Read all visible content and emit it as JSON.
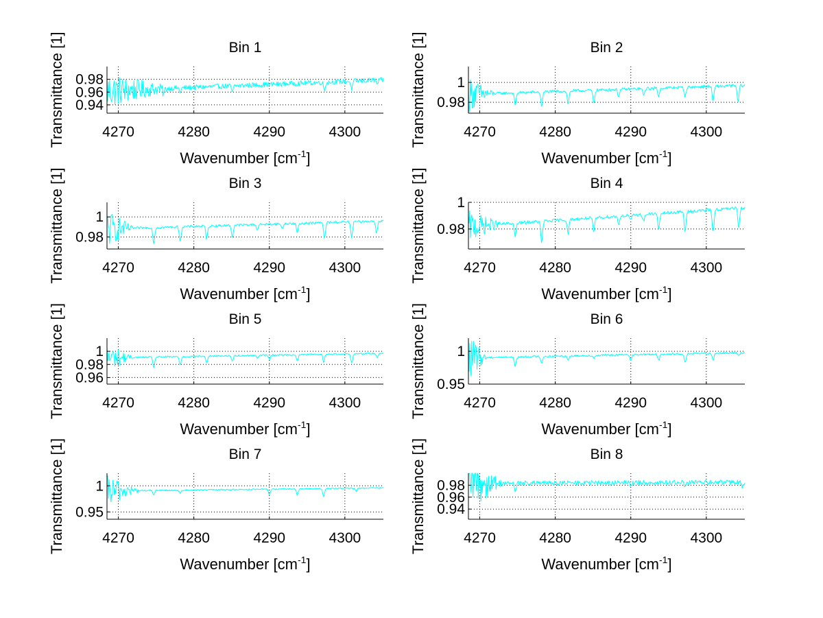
{
  "figure": {
    "background": "#ffffff",
    "line_color": "#00ffff"
  },
  "chart_data": [
    {
      "type": "line",
      "title": "Bin 1",
      "xlabel": "Wavenumber [cm",
      "xlabel_sup": "-1",
      "xlabel_close": "]",
      "ylabel": "Transmittance [1]",
      "xlim": [
        4268.5,
        4305.1
      ],
      "ylim": [
        0.927,
        1.0
      ],
      "xticks": [
        4270,
        4280,
        4290,
        4300
      ],
      "xtick_labels": [
        "4270",
        "4280",
        "4290",
        "4300"
      ],
      "yticks": [
        0.94,
        0.96,
        0.98
      ],
      "ytick_labels": [
        "0.94",
        "0.96",
        "0.98"
      ],
      "grid": true,
      "series": [
        {
          "name": "Bin 1",
          "baseline_start": 0.962,
          "baseline_end": 0.979,
          "noise_early": 0.028,
          "noise_late": 0.004,
          "noise_decay_until": 4277,
          "dips": [
            [
              4276.0,
              0.008
            ],
            [
              4278.2,
              0.006
            ],
            [
              4285.1,
              0.01
            ],
            [
              4297.3,
              0.012
            ],
            [
              4300.9,
              0.012
            ],
            [
              4304.3,
              0.006
            ]
          ]
        }
      ]
    },
    {
      "type": "line",
      "title": "Bin 2",
      "xlabel": "Wavenumber [cm",
      "xlabel_sup": "-1",
      "xlabel_close": "]",
      "ylabel": "Transmittance [1]",
      "xlim": [
        4268.5,
        4305.1
      ],
      "ylim": [
        0.969,
        1.016
      ],
      "xticks": [
        4270,
        4280,
        4290,
        4300
      ],
      "xtick_labels": [
        "4270",
        "4280",
        "4290",
        "4300"
      ],
      "yticks": [
        0.98,
        1.0
      ],
      "ytick_labels": [
        "0.98",
        "1"
      ],
      "grid": true,
      "series": [
        {
          "name": "Bin 2",
          "baseline_start": 0.988,
          "baseline_end": 0.997,
          "noise_early": 0.018,
          "noise_late": 0.0015,
          "noise_decay_until": 4272,
          "dips": [
            [
              4274.7,
              0.012
            ],
            [
              4278.2,
              0.014
            ],
            [
              4281.7,
              0.013
            ],
            [
              4285.1,
              0.013
            ],
            [
              4288.4,
              0.007
            ],
            [
              4291.7,
              0.007
            ],
            [
              4293.7,
              0.008
            ],
            [
              4297.2,
              0.009
            ],
            [
              4300.9,
              0.015
            ],
            [
              4304.2,
              0.017
            ]
          ]
        }
      ]
    },
    {
      "type": "line",
      "title": "Bin 3",
      "xlabel": "Wavenumber [cm",
      "xlabel_sup": "-1",
      "xlabel_close": "]",
      "ylabel": "Transmittance [1]",
      "xlim": [
        4268.5,
        4305.1
      ],
      "ylim": [
        0.968,
        1.0145
      ],
      "xticks": [
        4270,
        4280,
        4290,
        4300
      ],
      "xtick_labels": [
        "4270",
        "4280",
        "4290",
        "4300"
      ],
      "yticks": [
        0.98,
        1.0
      ],
      "ytick_labels": [
        "0.98",
        "1"
      ],
      "grid": true,
      "series": [
        {
          "name": "Bin 3",
          "baseline_start": 0.988,
          "baseline_end": 0.996,
          "noise_early": 0.02,
          "noise_late": 0.0012,
          "noise_decay_until": 4272,
          "dips": [
            [
              4274.7,
              0.016
            ],
            [
              4278.2,
              0.014
            ],
            [
              4281.7,
              0.013
            ],
            [
              4285.1,
              0.012
            ],
            [
              4288.4,
              0.005
            ],
            [
              4291.7,
              0.005
            ],
            [
              4293.7,
              0.009
            ],
            [
              4297.3,
              0.016
            ],
            [
              4300.9,
              0.016
            ],
            [
              4304.2,
              0.012
            ]
          ]
        }
      ]
    },
    {
      "type": "line",
      "title": "Bin 4",
      "xlabel": "Wavenumber [cm",
      "xlabel_sup": "-1",
      "xlabel_close": "]",
      "ylabel": "Transmittance [1]",
      "xlim": [
        4268.5,
        4305.1
      ],
      "ylim": [
        0.965,
        1.0
      ],
      "xticks": [
        4270,
        4280,
        4290,
        4300
      ],
      "xtick_labels": [
        "4270",
        "4280",
        "4290",
        "4300"
      ],
      "yticks": [
        0.98,
        1.0
      ],
      "ytick_labels": [
        "0.98",
        "1"
      ],
      "grid": true,
      "series": [
        {
          "name": "Bin 4",
          "baseline_start": 0.982,
          "baseline_end": 0.996,
          "noise_early": 0.012,
          "noise_late": 0.0012,
          "noise_decay_until": 4273,
          "dips": [
            [
              4274.7,
              0.01
            ],
            [
              4278.2,
              0.016
            ],
            [
              4281.7,
              0.011
            ],
            [
              4285.1,
              0.011
            ],
            [
              4288.4,
              0.006
            ],
            [
              4290.0,
              0.004
            ],
            [
              4291.7,
              0.005
            ],
            [
              4293.7,
              0.012
            ],
            [
              4297.2,
              0.015
            ],
            [
              4300.9,
              0.017
            ],
            [
              4304.3,
              0.014
            ]
          ]
        }
      ]
    },
    {
      "type": "line",
      "title": "Bin 5",
      "xlabel": "Wavenumber [cm",
      "xlabel_sup": "-1",
      "xlabel_close": "]",
      "ylabel": "Transmittance [1]",
      "xlim": [
        4268.5,
        4305.1
      ],
      "ylim": [
        0.95,
        1.02
      ],
      "xticks": [
        4270,
        4280,
        4290,
        4300
      ],
      "xtick_labels": [
        "4270",
        "4280",
        "4290",
        "4300"
      ],
      "yticks": [
        0.96,
        0.98,
        1.0
      ],
      "ytick_labels": [
        "0.96",
        "0.98",
        "1"
      ],
      "grid": true,
      "series": [
        {
          "name": "Bin 5",
          "baseline_start": 0.99,
          "baseline_end": 0.997,
          "noise_early": 0.022,
          "noise_late": 0.0012,
          "noise_decay_until": 4272,
          "dips": [
            [
              4274.7,
              0.016
            ],
            [
              4278.2,
              0.012
            ],
            [
              4281.7,
              0.01
            ],
            [
              4285.1,
              0.008
            ],
            [
              4288.4,
              0.004
            ],
            [
              4290.0,
              0.006
            ],
            [
              4293.7,
              0.01
            ],
            [
              4297.2,
              0.012
            ],
            [
              4300.9,
              0.014
            ],
            [
              4304.3,
              0.006
            ]
          ]
        }
      ]
    },
    {
      "type": "line",
      "title": "Bin 6",
      "xlabel": "Wavenumber [cm",
      "xlabel_sup": "-1",
      "xlabel_close": "]",
      "ylabel": "Transmittance [1]",
      "xlim": [
        4268.5,
        4305.1
      ],
      "ylim": [
        0.95,
        1.02
      ],
      "xticks": [
        4270,
        4280,
        4290,
        4300
      ],
      "xtick_labels": [
        "4270",
        "4280",
        "4290",
        "4300"
      ],
      "yticks": [
        0.95,
        1.0
      ],
      "ytick_labels": [
        "0.95",
        "1"
      ],
      "grid": true,
      "series": [
        {
          "name": "Bin 6",
          "baseline_start": 0.99,
          "baseline_end": 0.998,
          "noise_early": 0.035,
          "noise_late": 0.0015,
          "noise_decay_until": 4271,
          "dips": [
            [
              4274.7,
              0.014
            ],
            [
              4278.2,
              0.01
            ],
            [
              4281.7,
              0.006
            ],
            [
              4285.1,
              0.004
            ],
            [
              4290.0,
              0.008
            ],
            [
              4293.7,
              0.01
            ],
            [
              4297.2,
              0.014
            ],
            [
              4300.9,
              0.01
            ],
            [
              4304.3,
              0.005
            ]
          ]
        }
      ]
    },
    {
      "type": "line",
      "title": "Bin 7",
      "xlabel": "Wavenumber [cm",
      "xlabel_sup": "-1",
      "xlabel_close": "]",
      "ylabel": "Transmittance [1]",
      "xlim": [
        4268.5,
        4305.1
      ],
      "ylim": [
        0.936,
        1.024
      ],
      "xticks": [
        4270,
        4280,
        4290,
        4300
      ],
      "xtick_labels": [
        "4270",
        "4280",
        "4290",
        "4300"
      ],
      "yticks": [
        0.95,
        1.0
      ],
      "ytick_labels": [
        "0.95",
        "1"
      ],
      "grid": true,
      "series": [
        {
          "name": "Bin 7",
          "baseline_start": 0.99,
          "baseline_end": 0.996,
          "noise_early": 0.03,
          "noise_late": 0.0012,
          "noise_decay_until": 4273,
          "dips": [
            [
              4274.7,
              0.008
            ],
            [
              4278.2,
              0.006
            ],
            [
              4290.0,
              0.01
            ],
            [
              4293.7,
              0.012
            ],
            [
              4297.2,
              0.016
            ],
            [
              4301.5,
              0.006
            ]
          ]
        }
      ]
    },
    {
      "type": "line",
      "title": "Bin 8",
      "xlabel": "Wavenumber [cm",
      "xlabel_sup": "-1",
      "xlabel_close": "]",
      "ylabel": "Transmittance [1]",
      "xlim": [
        4268.5,
        4305.1
      ],
      "ylim": [
        0.923,
        1.0
      ],
      "xticks": [
        4270,
        4280,
        4290,
        4300
      ],
      "xtick_labels": [
        "4270",
        "4280",
        "4290",
        "4300"
      ],
      "yticks": [
        0.94,
        0.96,
        0.98
      ],
      "ytick_labels": [
        "0.94",
        "0.96",
        "0.98"
      ],
      "grid": true,
      "series": [
        {
          "name": "Bin 8",
          "baseline_start": 0.983,
          "baseline_end": 0.985,
          "noise_early": 0.05,
          "noise_late": 0.004,
          "noise_decay_until": 4273,
          "dips": [
            [
              4274.7,
              0.012
            ],
            [
              4290.0,
              0.004
            ],
            [
              4297.2,
              0.005
            ],
            [
              4304.8,
              0.008
            ]
          ]
        }
      ]
    }
  ]
}
